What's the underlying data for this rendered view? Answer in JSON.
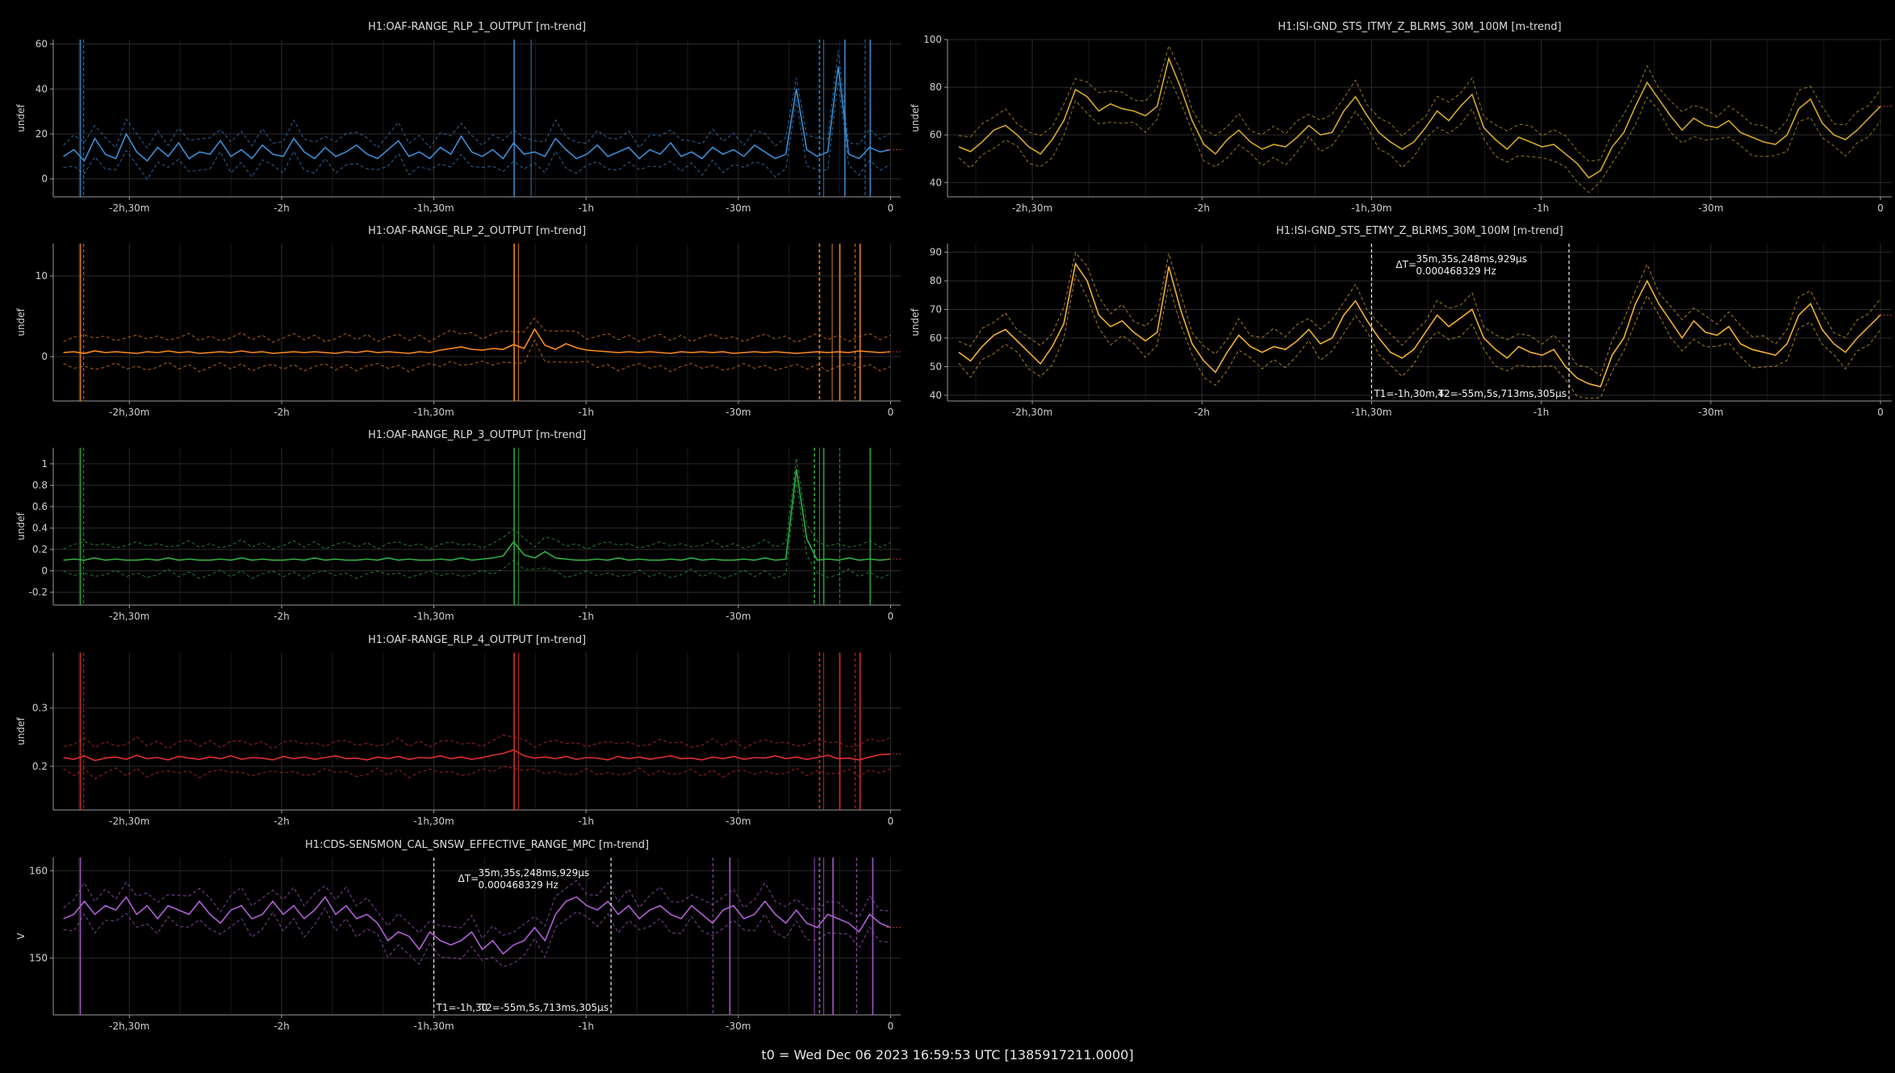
{
  "footer": "t0 = Wed Dec 06 2023 16:59:53 UTC [1385917211.0000]",
  "x_ticks": [
    "-2h,30m",
    "-2h",
    "-1h,30m",
    "-1h",
    "-30m",
    "0"
  ],
  "chart_data": [
    {
      "type": "line",
      "title": "H1:OAF-RANGE_RLP_1_OUTPUT [m-trend]",
      "ylabel": "undef",
      "color": "#3b8ed6",
      "x_range_s": [
        -9900,
        120
      ],
      "ylim": [
        -8,
        62
      ],
      "yticks": [
        "0",
        "20",
        "40",
        "60"
      ],
      "ytick_values": [
        0,
        20,
        40,
        60
      ],
      "series": [
        {
          "values": [
            10,
            13,
            8,
            18,
            11,
            9,
            20,
            12,
            8,
            14,
            10,
            16,
            9,
            12,
            11,
            17,
            10,
            13,
            9,
            15,
            11,
            10,
            18,
            12,
            9,
            14,
            10,
            12,
            15,
            11,
            9,
            13,
            17,
            10,
            12,
            9,
            14,
            11,
            19,
            12,
            10,
            13,
            9,
            16,
            11,
            12,
            10,
            18,
            13,
            9,
            11,
            15,
            10,
            12,
            14,
            9,
            13,
            11,
            16,
            10,
            12,
            9,
            14,
            11,
            13,
            10,
            15,
            12,
            9,
            11,
            40,
            13,
            10,
            12,
            50,
            11,
            9,
            14,
            12,
            13
          ]
        }
      ],
      "spikes_s": [
        -9580,
        -9540,
        -4450,
        -4250,
        -840,
        -790,
        -540,
        -300,
        -240
      ]
    },
    {
      "type": "line",
      "title": "H1:OAF-RANGE_RLP_2_OUTPUT [m-trend]",
      "ylabel": "undef",
      "color": "#ff8c1a",
      "x_range_s": [
        -9900,
        120
      ],
      "ylim": [
        -5.5,
        14
      ],
      "yticks": [
        "0",
        "10"
      ],
      "ytick_values": [
        0,
        10
      ],
      "series": [
        {
          "values": [
            0.5,
            0.6,
            0.4,
            0.7,
            0.5,
            0.6,
            0.5,
            0.4,
            0.6,
            0.5,
            0.7,
            0.5,
            0.6,
            0.4,
            0.5,
            0.6,
            0.5,
            0.7,
            0.5,
            0.6,
            0.4,
            0.5,
            0.6,
            0.5,
            0.6,
            0.5,
            0.4,
            0.6,
            0.5,
            0.7,
            0.5,
            0.6,
            0.5,
            0.4,
            0.6,
            0.5,
            0.8,
            1.0,
            1.2,
            0.9,
            0.8,
            1.0,
            0.9,
            1.5,
            1.0,
            3.4,
            1.4,
            0.9,
            1.6,
            1.1,
            0.8,
            0.7,
            0.6,
            0.5,
            0.6,
            0.5,
            0.6,
            0.5,
            0.4,
            0.6,
            0.5,
            0.6,
            0.5,
            0.6,
            0.4,
            0.5,
            0.6,
            0.5,
            0.6,
            0.5,
            0.4,
            0.5,
            0.6,
            0.5,
            0.6,
            0.5,
            0.7,
            0.6,
            0.5,
            0.6
          ]
        }
      ],
      "spikes_s": [
        -9580,
        -9540,
        -4450,
        -4400,
        -840,
        -690,
        -600,
        -420,
        -360
      ]
    },
    {
      "type": "line",
      "title": "H1:OAF-RANGE_RLP_3_OUTPUT [m-trend]",
      "ylabel": "undef",
      "color": "#2fb044",
      "x_range_s": [
        -9900,
        120
      ],
      "ylim": [
        -0.32,
        1.15
      ],
      "yticks": [
        "-0.2",
        "0",
        "0.2",
        "0.4",
        "0.6",
        "0.8",
        "1"
      ],
      "ytick_values": [
        -0.2,
        0,
        0.2,
        0.4,
        0.6,
        0.8,
        1
      ],
      "series": [
        {
          "values": [
            0.1,
            0.11,
            0.1,
            0.12,
            0.1,
            0.11,
            0.1,
            0.1,
            0.11,
            0.1,
            0.12,
            0.1,
            0.11,
            0.1,
            0.1,
            0.11,
            0.1,
            0.12,
            0.1,
            0.11,
            0.1,
            0.1,
            0.11,
            0.1,
            0.12,
            0.1,
            0.11,
            0.1,
            0.1,
            0.11,
            0.1,
            0.12,
            0.1,
            0.11,
            0.1,
            0.1,
            0.11,
            0.1,
            0.12,
            0.1,
            0.11,
            0.12,
            0.14,
            0.27,
            0.15,
            0.12,
            0.18,
            0.12,
            0.11,
            0.1,
            0.1,
            0.11,
            0.1,
            0.12,
            0.1,
            0.11,
            0.1,
            0.1,
            0.11,
            0.1,
            0.12,
            0.1,
            0.11,
            0.1,
            0.1,
            0.11,
            0.1,
            0.12,
            0.1,
            0.11,
            0.95,
            0.3,
            0.1,
            0.11,
            0.1,
            0.12,
            0.1,
            0.11,
            0.1,
            0.11
          ]
        }
      ],
      "spikes_s": [
        -9580,
        -9540,
        -4450,
        -4400,
        -900,
        -840,
        -790,
        -600,
        -240
      ]
    },
    {
      "type": "line",
      "title": "H1:OAF-RANGE_RLP_4_OUTPUT [m-trend]",
      "ylabel": "undef",
      "color": "#e0302c",
      "x_range_s": [
        -9900,
        120
      ],
      "ylim": [
        0.125,
        0.395
      ],
      "yticks": [
        "0.2",
        "0.3"
      ],
      "ytick_values": [
        0.2,
        0.3
      ],
      "series": [
        {
          "values": [
            0.215,
            0.212,
            0.218,
            0.21,
            0.214,
            0.216,
            0.212,
            0.219,
            0.213,
            0.215,
            0.211,
            0.217,
            0.214,
            0.212,
            0.216,
            0.213,
            0.218,
            0.212,
            0.215,
            0.214,
            0.211,
            0.217,
            0.213,
            0.216,
            0.212,
            0.215,
            0.218,
            0.213,
            0.214,
            0.211,
            0.216,
            0.213,
            0.217,
            0.212,
            0.215,
            0.214,
            0.218,
            0.213,
            0.216,
            0.212,
            0.215,
            0.219,
            0.222,
            0.228,
            0.218,
            0.214,
            0.216,
            0.213,
            0.217,
            0.212,
            0.215,
            0.214,
            0.211,
            0.217,
            0.213,
            0.216,
            0.212,
            0.215,
            0.218,
            0.213,
            0.214,
            0.211,
            0.216,
            0.213,
            0.217,
            0.212,
            0.215,
            0.214,
            0.218,
            0.213,
            0.216,
            0.212,
            0.215,
            0.219,
            0.213,
            0.214,
            0.211,
            0.216,
            0.22,
            0.221
          ]
        }
      ],
      "spikes_s": [
        -9580,
        -9540,
        -4450,
        -4400,
        -840,
        -790,
        -600,
        -420,
        -360
      ]
    },
    {
      "type": "line",
      "title": "H1:CDS-SENSMON_CAL_SNSW_EFFECTIVE_RANGE_MPC [m-trend]",
      "ylabel": "V",
      "color": "#b05fd6",
      "x_range_s": [
        -9900,
        120
      ],
      "ylim": [
        143.5,
        161.5
      ],
      "yticks": [
        "150",
        "160"
      ],
      "ytick_values": [
        150,
        160
      ],
      "series": [
        {
          "values": [
            154.5,
            155,
            156.5,
            155,
            156,
            155.5,
            157,
            155,
            156,
            154.5,
            156,
            155.5,
            155,
            156.5,
            155,
            154,
            155.5,
            156,
            154.5,
            155,
            156.5,
            155,
            156,
            154.5,
            155.5,
            157,
            155,
            156,
            154.5,
            155,
            154,
            152,
            153,
            152.5,
            151,
            153,
            152,
            151.5,
            152,
            153,
            151,
            152,
            150.5,
            151.5,
            152,
            153.5,
            152,
            155,
            156.5,
            157,
            156,
            155.5,
            156.5,
            155,
            156,
            154.5,
            155.5,
            156,
            155,
            154.5,
            156,
            155,
            154,
            155.5,
            156,
            154.5,
            155,
            156.5,
            155,
            154,
            155.5,
            154,
            153.5,
            155,
            154.5,
            154,
            153,
            155,
            154,
            153.5
          ]
        }
      ],
      "spikes_s": [
        -9580,
        -2100,
        -1900,
        -900,
        -840,
        -790,
        -680,
        -400,
        -210
      ]
    },
    {
      "type": "line",
      "title": "H1:ISI-GND_STS_ITMY_Z_BLRMS_30M_100M [m-trend]",
      "ylabel": "undef",
      "color": "#d4a92a",
      "x_range_s": [
        -9900,
        120
      ],
      "ylim": [
        34,
        100
      ],
      "yticks": [
        "40",
        "60",
        "80",
        "100"
      ],
      "ytick_values": [
        40,
        60,
        80,
        100
      ],
      "series": [
        {
          "values": [
            55,
            53,
            57,
            62,
            64,
            60,
            55,
            52,
            58,
            66,
            79,
            76,
            70,
            73,
            71,
            70,
            68,
            72,
            92,
            80,
            66,
            56,
            52,
            58,
            62,
            57,
            54,
            56,
            55,
            59,
            64,
            60,
            61,
            70,
            76,
            68,
            61,
            57,
            54,
            57,
            63,
            70,
            66,
            72,
            77,
            63,
            58,
            54,
            59,
            57,
            55,
            56,
            52,
            48,
            42,
            45,
            55,
            61,
            72,
            82,
            75,
            68,
            62,
            67,
            64,
            63,
            66,
            61,
            59,
            57,
            56,
            60,
            71,
            75,
            65,
            60,
            58,
            62,
            67,
            72
          ]
        }
      ],
      "spikes_s": []
    },
    {
      "type": "line",
      "title": "H1:ISI-GND_STS_ETMY_Z_BLRMS_30M_100M [m-trend]",
      "ylabel": "undef",
      "color": "#f0b030",
      "x_range_s": [
        -9900,
        120
      ],
      "ylim": [
        38,
        93
      ],
      "yticks": [
        "40",
        "50",
        "60",
        "70",
        "80",
        "90"
      ],
      "ytick_values": [
        40,
        50,
        60,
        70,
        80,
        90
      ],
      "series": [
        {
          "values": [
            55,
            52,
            57,
            61,
            63,
            59,
            55,
            51,
            57,
            65,
            86,
            80,
            68,
            64,
            66,
            62,
            59,
            62,
            85,
            70,
            58,
            52,
            48,
            55,
            61,
            57,
            55,
            57,
            56,
            59,
            63,
            58,
            60,
            68,
            73,
            66,
            60,
            55,
            53,
            56,
            62,
            68,
            64,
            67,
            70,
            60,
            56,
            53,
            57,
            55,
            54,
            56,
            50,
            46,
            44,
            43,
            54,
            60,
            72,
            80,
            72,
            66,
            60,
            66,
            62,
            61,
            64,
            58,
            56,
            55,
            54,
            58,
            68,
            72,
            63,
            58,
            55,
            60,
            64,
            68
          ]
        }
      ],
      "spikes_s": []
    }
  ],
  "cursors": [
    {
      "panel": 4,
      "delta_label": "ΔT=",
      "delta_value": "35m,35s,248ms,929μs",
      "freq": "0.000468329 Hz",
      "t1_label": "T1=-1h,30",
      "t2_label": "T2=-55m,5s,713ms,305μs",
      "t1_s": -5400,
      "t2_s": -3305
    },
    {
      "panel": 6,
      "delta_label": "ΔT=",
      "delta_value": "35m,35s,248ms,929μs",
      "freq": "0.000468329 Hz",
      "t1_label": "T1=-1h,30m,4",
      "t2_label": "T2=-55m,5s,713ms,305μs",
      "t1_s": -5400,
      "t2_s": -3305
    }
  ]
}
